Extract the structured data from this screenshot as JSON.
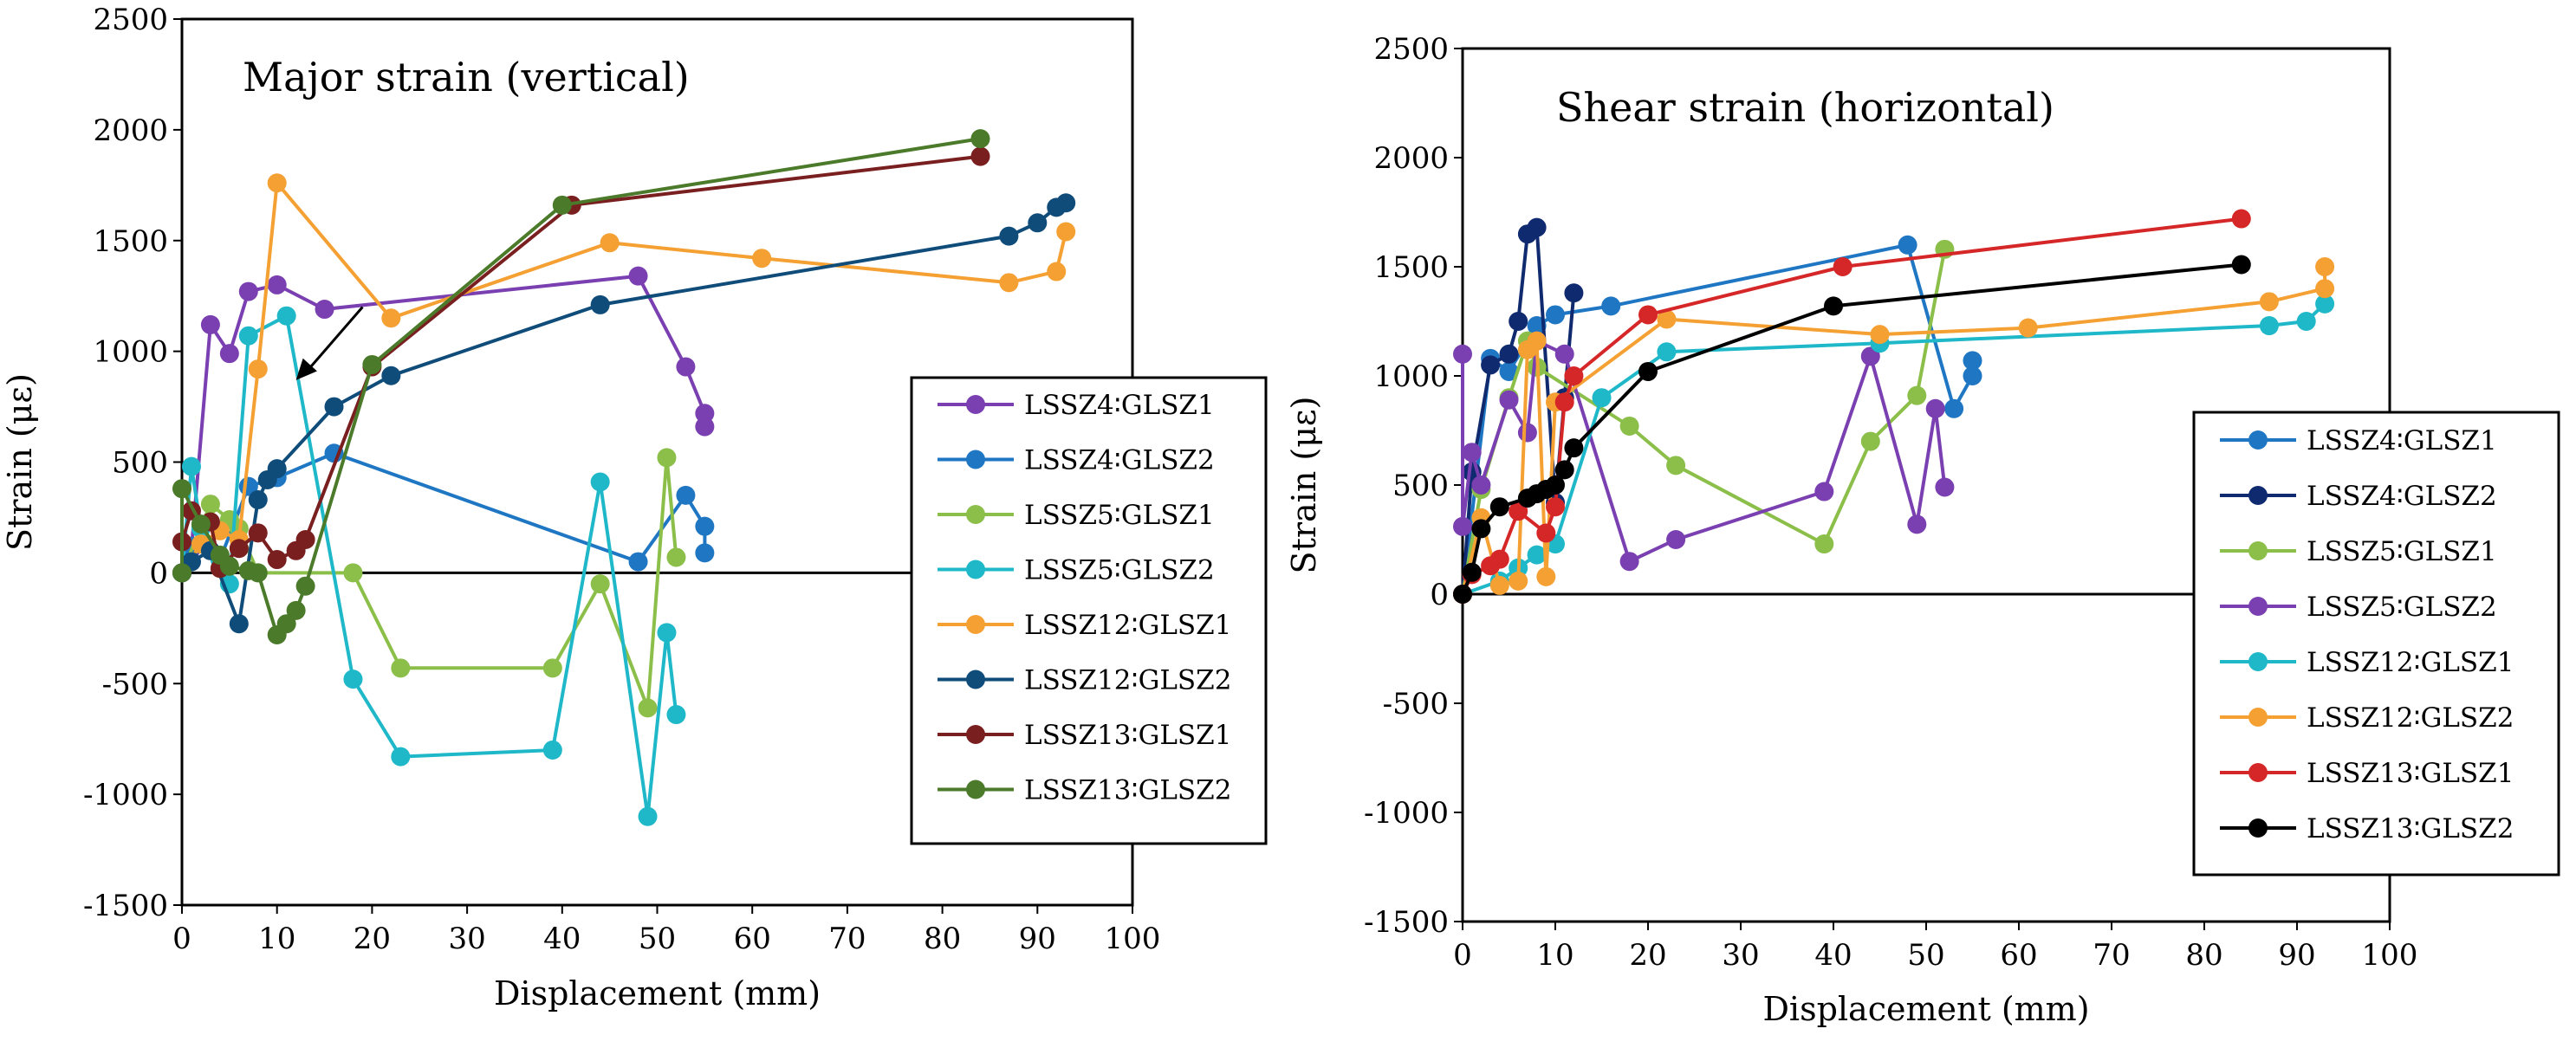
{
  "chart_data": [
    {
      "type": "line",
      "title": "Major strain (vertical)",
      "xlabel": "Displacement (mm)",
      "ylabel": "Strain (με)",
      "xlim": [
        0,
        100
      ],
      "ylim": [
        -1500,
        2500
      ],
      "xticks": [
        "0",
        "10",
        "20",
        "30",
        "40",
        "50",
        "60",
        "70",
        "80",
        "90",
        "100"
      ],
      "yticks": [
        "-1500",
        "-1000",
        "-500",
        "0",
        "500",
        "1000",
        "1500",
        "2000",
        "2500"
      ],
      "legend_position": "right",
      "series": [
        {
          "name": "LSSZ4∶GLSZ1",
          "color": "#7a3fb0",
          "x": [
            0,
            1,
            3,
            5,
            7,
            10,
            15,
            48,
            53,
            55,
            55
          ],
          "y": [
            0,
            110,
            1120,
            990,
            1270,
            1300,
            1190,
            1340,
            930,
            720,
            660
          ]
        },
        {
          "name": "LSSZ4∶GLSZ2",
          "color": "#1f77c4",
          "x": [
            0,
            1,
            4,
            7,
            10,
            16,
            48,
            53,
            55,
            55
          ],
          "y": [
            0,
            120,
            60,
            390,
            430,
            540,
            50,
            350,
            210,
            90
          ]
        },
        {
          "name": "LSSZ5∶GLSZ1",
          "color": "#8bbf4a",
          "x": [
            0,
            3,
            5,
            6,
            8,
            18,
            23,
            39,
            44,
            49,
            51,
            52
          ],
          "y": [
            0,
            310,
            240,
            200,
            0,
            0,
            -430,
            -430,
            -50,
            -610,
            520,
            70
          ]
        },
        {
          "name": "LSSZ5∶GLSZ2",
          "color": "#1fb8c9",
          "x": [
            0,
            1,
            2,
            4,
            5,
            7,
            11,
            18,
            23,
            39,
            44,
            49,
            51,
            52
          ],
          "y": [
            0,
            480,
            200,
            60,
            -50,
            1070,
            1160,
            -480,
            -830,
            -800,
            410,
            -1100,
            -270,
            -640
          ]
        },
        {
          "name": "LSSZ12∶GLSZ1",
          "color": "#f5a033",
          "x": [
            0,
            2,
            4,
            6,
            8,
            10,
            22,
            45,
            61,
            87,
            92,
            93
          ],
          "y": [
            0,
            130,
            190,
            150,
            920,
            1760,
            1150,
            1490,
            1420,
            1310,
            1360,
            1540
          ]
        },
        {
          "name": "LSSZ12∶GLSZ2",
          "color": "#0f4c7a",
          "x": [
            0,
            1,
            3,
            6,
            8,
            9,
            10,
            16,
            22,
            44,
            87,
            90,
            92,
            93
          ],
          "y": [
            0,
            50,
            100,
            -230,
            330,
            420,
            470,
            750,
            890,
            1210,
            1520,
            1580,
            1650,
            1670
          ]
        },
        {
          "name": "LSSZ13∶GLSZ1",
          "color": "#7a1f1f",
          "x": [
            0,
            1,
            3,
            4,
            6,
            8,
            10,
            12,
            13,
            20,
            41,
            84
          ],
          "y": [
            140,
            280,
            230,
            20,
            110,
            180,
            60,
            100,
            150,
            930,
            1660,
            1880
          ]
        },
        {
          "name": "LSSZ13∶GLSZ2",
          "color": "#4a7a2a",
          "x": [
            0,
            0,
            2,
            4,
            5,
            7,
            8,
            10,
            11,
            12,
            13,
            20,
            40,
            84
          ],
          "y": [
            0,
            380,
            220,
            80,
            30,
            10,
            0,
            -280,
            -230,
            -170,
            -60,
            940,
            1660,
            1960
          ]
        }
      ]
    },
    {
      "type": "line",
      "title": "Shear strain (horizontal)",
      "xlabel": "Displacement (mm)",
      "ylabel": "Strain (με)",
      "xlim": [
        0,
        100
      ],
      "ylim": [
        -1500,
        2500
      ],
      "xticks": [
        "0",
        "10",
        "20",
        "30",
        "40",
        "50",
        "60",
        "70",
        "80",
        "90",
        "100"
      ],
      "yticks": [
        "-1500",
        "-1000",
        "-500",
        "0",
        "500",
        "1000",
        "1500",
        "2000",
        "2500"
      ],
      "legend_position": "right",
      "series": [
        {
          "name": "LSSZ4∶GLSZ1",
          "color": "#1f77c4",
          "x": [
            0,
            3,
            5,
            8,
            10,
            16,
            48,
            53,
            55,
            55
          ],
          "y": [
            0,
            1080,
            1020,
            1230,
            1280,
            1320,
            1600,
            850,
            1000,
            1070
          ]
        },
        {
          "name": "LSSZ4∶GLSZ2",
          "color": "#0f2a6e",
          "x": [
            0,
            1,
            3,
            5,
            6,
            7,
            8,
            10,
            11,
            12
          ],
          "y": [
            0,
            560,
            1050,
            1100,
            1250,
            1650,
            1680,
            420,
            900,
            1380
          ]
        },
        {
          "name": "LSSZ5∶GLSZ1",
          "color": "#8bbf4a",
          "x": [
            0,
            2,
            5,
            7,
            8,
            18,
            23,
            39,
            44,
            49,
            52
          ],
          "y": [
            0,
            480,
            900,
            1160,
            1040,
            770,
            590,
            230,
            700,
            910,
            1580
          ]
        },
        {
          "name": "LSSZ5∶GLSZ2",
          "color": "#7a3fb0",
          "x": [
            0,
            0,
            1,
            2,
            5,
            7,
            8,
            11,
            18,
            23,
            39,
            44,
            49,
            51,
            52
          ],
          "y": [
            1100,
            310,
            650,
            500,
            890,
            740,
            1160,
            1100,
            150,
            250,
            470,
            1090,
            320,
            850,
            490
          ]
        },
        {
          "name": "LSSZ12∶GLSZ1",
          "color": "#1fb8c9",
          "x": [
            0,
            4,
            6,
            8,
            10,
            15,
            22,
            45,
            87,
            91,
            93
          ],
          "y": [
            0,
            60,
            120,
            180,
            230,
            900,
            1110,
            1150,
            1230,
            1250,
            1330
          ]
        },
        {
          "name": "LSSZ12∶GLSZ2",
          "color": "#f5a033",
          "x": [
            0,
            2,
            4,
            6,
            7,
            8,
            9,
            10,
            22,
            45,
            61,
            87,
            93,
            93
          ],
          "y": [
            0,
            350,
            40,
            60,
            1120,
            1160,
            80,
            880,
            1260,
            1190,
            1220,
            1340,
            1400,
            1500
          ]
        },
        {
          "name": "LSSZ13∶GLSZ1",
          "color": "#d62728",
          "x": [
            0,
            1,
            3,
            4,
            6,
            9,
            10,
            11,
            12,
            20,
            41,
            84
          ],
          "y": [
            0,
            90,
            130,
            160,
            380,
            280,
            400,
            880,
            1000,
            1280,
            1500,
            1720
          ]
        },
        {
          "name": "LSSZ13∶GLSZ2",
          "color": "#000000",
          "x": [
            0,
            1,
            2,
            4,
            7,
            8,
            9,
            10,
            11,
            12,
            20,
            40,
            84
          ],
          "y": [
            0,
            100,
            300,
            400,
            440,
            460,
            480,
            500,
            570,
            670,
            1020,
            1320,
            1510
          ]
        }
      ]
    }
  ]
}
